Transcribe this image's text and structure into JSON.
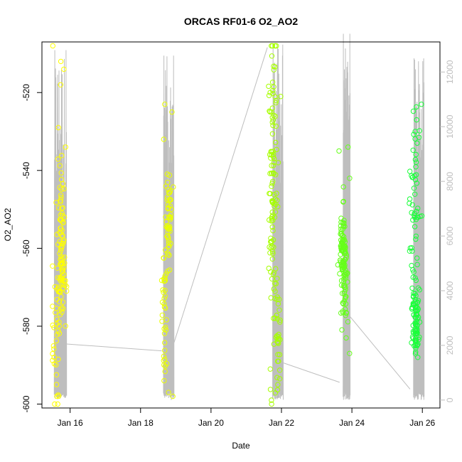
{
  "chart_data": {
    "type": "scatter",
    "title": "ORCAS RF01-6 O2_AO2",
    "xlabel": "Date",
    "ylabel": "O2_AO2",
    "x_ticks": [
      "Jan 16",
      "Jan 18",
      "Jan 20",
      "Jan 22",
      "Jan 24",
      "Jan 26"
    ],
    "x_tick_days": [
      16,
      18,
      20,
      22,
      24,
      26
    ],
    "xlim": [
      15.2,
      26.5
    ],
    "y_ticks": [
      -520,
      -540,
      -560,
      -580,
      -600
    ],
    "ylim": [
      -601,
      -507
    ],
    "y2_ticks": [
      0,
      2000,
      4000,
      6000,
      8000,
      10000,
      12000
    ],
    "y2lim": [
      -290,
      13100
    ],
    "y2_color": "#bebebe",
    "grid": false,
    "legend": "none",
    "series": [
      {
        "day_range": [
          15.5,
          15.9
        ],
        "color": "#ffff00",
        "clusters": [
          {
            "center": -560,
            "spread": 9,
            "count": 95,
            "day": 15.75,
            "day_spread": 0.12
          },
          {
            "center": -585,
            "spread": 10,
            "count": 30,
            "day": 15.6,
            "day_spread": 0.12
          }
        ],
        "outliers": [
          -508,
          -512,
          -514,
          -518,
          -529,
          -534,
          -595,
          -598
        ]
      },
      {
        "day_range": [
          18.6,
          18.95
        ],
        "color": "#eaff00",
        "clusters": [
          {
            "center": -553,
            "spread": 6,
            "count": 55,
            "day": 18.8,
            "day_spread": 0.08
          },
          {
            "center": -577,
            "spread": 7,
            "count": 35,
            "day": 18.68,
            "day_spread": 0.06
          }
        ],
        "outliers": [
          -523,
          -525,
          -532,
          -594,
          -597,
          -598
        ]
      },
      {
        "day_range": [
          21.6,
          22.0
        ],
        "color": "#a6ff00",
        "clusters": [
          {
            "center": -545,
            "spread": 18,
            "count": 110,
            "day": 21.75,
            "day_spread": 0.12
          },
          {
            "center": -582,
            "spread": 6,
            "count": 30,
            "day": 21.9,
            "day_spread": 0.08
          }
        ],
        "outliers": [
          -521,
          -520,
          -600,
          -595,
          -591
        ]
      },
      {
        "day_range": [
          23.6,
          23.95
        ],
        "color": "#66ff1a",
        "clusters": [
          {
            "center": -560,
            "spread": 5,
            "count": 90,
            "day": 23.75,
            "day_spread": 0.08
          },
          {
            "center": -573,
            "spread": 5,
            "count": 30,
            "day": 23.8,
            "day_spread": 0.1
          }
        ],
        "outliers": [
          -534,
          -535,
          -542,
          -587,
          -583
        ]
      },
      {
        "day_range": [
          25.6,
          26.0
        ],
        "color": "#1aff3a",
        "clusters": [
          {
            "center": -578,
            "spread": 5,
            "count": 80,
            "day": 25.8,
            "day_spread": 0.1
          },
          {
            "center": -548,
            "spread": 13,
            "count": 50,
            "day": 25.78,
            "day_spread": 0.15
          }
        ],
        "outliers": [
          -523,
          -527,
          -530,
          -533,
          -588
        ]
      }
    ],
    "secondary_line": {
      "name": "",
      "color": "#bebebe",
      "axis": "right",
      "segments": [
        {
          "t0": 15.55,
          "t1": 15.9,
          "lo": 0,
          "hi": 12800
        },
        {
          "t0": 18.65,
          "t1": 18.95,
          "lo": 0,
          "hi": 12600
        },
        {
          "t0": 21.75,
          "t1": 22.05,
          "lo": 0,
          "hi": 13000
        },
        {
          "t0": 23.75,
          "t1": 23.95,
          "lo": 0,
          "hi": 13400
        },
        {
          "t0": 25.75,
          "t1": 26.05,
          "lo": 0,
          "hi": 12500
        }
      ],
      "connectors": [
        [
          [
            15.9,
            2050
          ],
          [
            18.6,
            1800
          ]
        ],
        [
          [
            18.95,
            2100
          ],
          [
            21.6,
            12900
          ]
        ],
        [
          [
            21.85,
            1450
          ],
          [
            23.65,
            650
          ]
        ],
        [
          [
            23.95,
            3050
          ],
          [
            25.65,
            400
          ]
        ]
      ]
    }
  }
}
